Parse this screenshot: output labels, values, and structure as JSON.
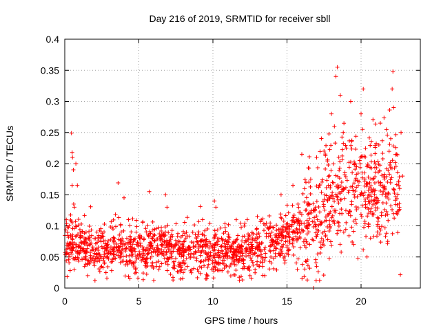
{
  "chart_data": {
    "type": "scatter",
    "title": "Day 216 of 2019, SRMTID for receiver sbll",
    "xlabel": "GPS time / hours",
    "ylabel": "SRMTID / TECUs",
    "xlim": [
      0,
      24
    ],
    "ylim": [
      0,
      0.4
    ],
    "grid": true,
    "marker": "plus",
    "color": "#ff0000",
    "x_ticks": [
      0,
      5,
      10,
      15,
      20
    ],
    "x_tick_labels": [
      "0",
      "5",
      "10",
      "15",
      "20"
    ],
    "y_ticks": [
      0,
      0.05,
      0.1,
      0.15,
      0.2,
      0.25,
      0.3,
      0.35,
      0.4
    ],
    "y_tick_labels": [
      "0",
      "0.05",
      "0.1",
      "0.15",
      "0.2",
      "0.25",
      "0.3",
      "0.35",
      "0.4"
    ],
    "series": [
      {
        "name": "SRMTID",
        "trend": [
          [
            0,
            0.07
          ],
          [
            1,
            0.07
          ],
          [
            2,
            0.06
          ],
          [
            3,
            0.065
          ],
          [
            4,
            0.06
          ],
          [
            5,
            0.065
          ],
          [
            6,
            0.065
          ],
          [
            7,
            0.065
          ],
          [
            8,
            0.055
          ],
          [
            9,
            0.065
          ],
          [
            10,
            0.06
          ],
          [
            11,
            0.06
          ],
          [
            12,
            0.06
          ],
          [
            13,
            0.065
          ],
          [
            14,
            0.075
          ],
          [
            15,
            0.085
          ],
          [
            16,
            0.1
          ],
          [
            17,
            0.12
          ],
          [
            18,
            0.14
          ],
          [
            19,
            0.16
          ],
          [
            20,
            0.16
          ],
          [
            21,
            0.15
          ],
          [
            22,
            0.17
          ],
          [
            22.7,
            0.15
          ]
        ],
        "points": [
          [
            0.45,
            0.249
          ],
          [
            0.5,
            0.218
          ],
          [
            0.52,
            0.21
          ],
          [
            0.58,
            0.19
          ],
          [
            0.5,
            0.165
          ],
          [
            0.6,
            0.135
          ],
          [
            0.65,
            0.13
          ],
          [
            0.75,
            0.2
          ],
          [
            0.85,
            0.165
          ],
          [
            0.3,
            0.1
          ],
          [
            3.6,
            0.169
          ],
          [
            4.0,
            0.145
          ],
          [
            4.3,
            0.11
          ],
          [
            4.4,
            0.015
          ],
          [
            5.7,
            0.155
          ],
          [
            6.8,
            0.15
          ],
          [
            6.9,
            0.13
          ],
          [
            8.0,
            0.025
          ],
          [
            9.3,
            0.11
          ],
          [
            10.1,
            0.14
          ],
          [
            10.2,
            0.13
          ],
          [
            12.5,
            0.02
          ],
          [
            13.0,
            0.115
          ],
          [
            13.5,
            0.02
          ],
          [
            14.6,
            0.15
          ],
          [
            15.4,
            0.165
          ],
          [
            15.7,
            0.03
          ],
          [
            16.0,
            0.215
          ],
          [
            16.6,
            0.175
          ],
          [
            16.8,
            0.125
          ],
          [
            17.0,
            0.21
          ],
          [
            17.3,
            0.065
          ],
          [
            17.5,
            0.22
          ],
          [
            17.8,
            0.165
          ],
          [
            18.0,
            0.28
          ],
          [
            18.2,
            0.26
          ],
          [
            18.3,
            0.34
          ],
          [
            18.4,
            0.355
          ],
          [
            18.6,
            0.31
          ],
          [
            18.8,
            0.25
          ],
          [
            19.0,
            0.225
          ],
          [
            19.3,
            0.3
          ],
          [
            19.5,
            0.07
          ],
          [
            19.7,
            0.195
          ],
          [
            19.9,
            0.205
          ],
          [
            20.0,
            0.28
          ],
          [
            20.1,
            0.255
          ],
          [
            20.15,
            0.32
          ],
          [
            20.4,
            0.05
          ],
          [
            20.6,
            0.14
          ],
          [
            20.8,
            0.175
          ],
          [
            21.0,
            0.125
          ],
          [
            21.2,
            0.23
          ],
          [
            21.3,
            0.265
          ],
          [
            21.6,
            0.16
          ],
          [
            21.8,
            0.075
          ],
          [
            22.0,
            0.24
          ],
          [
            22.1,
            0.32
          ],
          [
            22.15,
            0.348
          ],
          [
            22.2,
            0.29
          ],
          [
            22.4,
            0.215
          ],
          [
            22.6,
            0.16
          ],
          [
            22.7,
            0.25
          ],
          [
            22.8,
            0.18
          ],
          [
            17.0,
            0.035
          ],
          [
            16.8,
            0.0
          ]
        ],
        "notes": "dense scatter of ~1800 points; points listed are visible outliers/extremes, the remainder follow the trend with noise"
      }
    ]
  }
}
